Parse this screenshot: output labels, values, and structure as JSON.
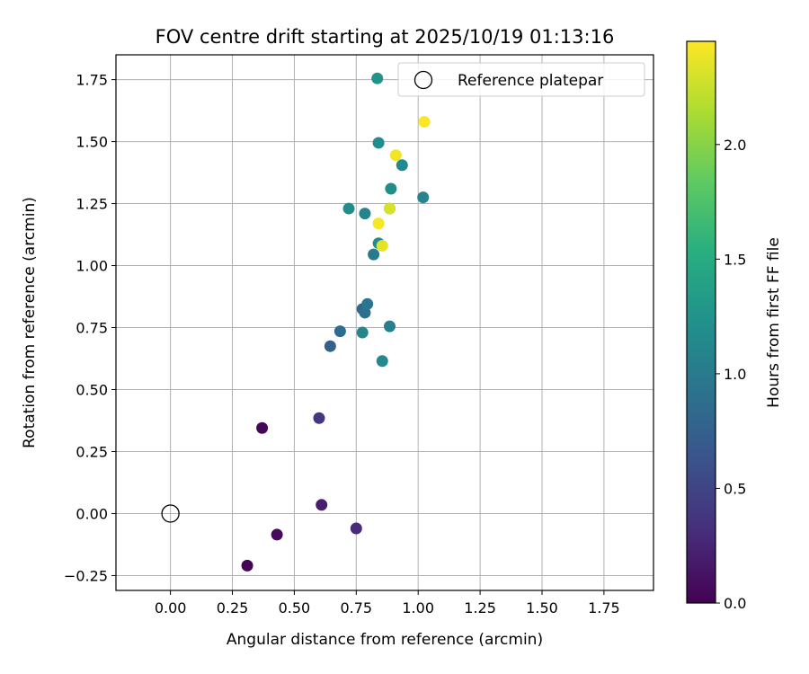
{
  "chart_data": {
    "type": "scatter",
    "title": "FOV centre drift starting at 2025/10/19 01:13:16",
    "xlabel": "Angular distance from reference (arcmin)",
    "ylabel": "Rotation from reference (arcmin)",
    "xlim": [
      -0.22,
      1.95
    ],
    "ylim": [
      -0.31,
      1.85
    ],
    "xticks": [
      0.0,
      0.25,
      0.5,
      0.75,
      1.0,
      1.25,
      1.5,
      1.75
    ],
    "xtick_labels": [
      "0.00",
      "0.25",
      "0.50",
      "0.75",
      "1.00",
      "1.25",
      "1.50",
      "1.75"
    ],
    "yticks": [
      -0.25,
      0.0,
      0.25,
      0.5,
      0.75,
      1.0,
      1.25,
      1.5,
      1.75
    ],
    "ytick_labels": [
      "−0.25",
      "0.00",
      "0.25",
      "0.50",
      "0.75",
      "1.00",
      "1.25",
      "1.50",
      "1.75"
    ],
    "grid": true,
    "legend": {
      "position": "top-right",
      "label": "Reference platepar"
    },
    "reference_point": {
      "x": 0.0,
      "y": 0.0
    },
    "colorbar": {
      "label": "Hours from first FF file",
      "colormap": "viridis",
      "range": [
        0.0,
        2.45
      ],
      "ticks": [
        0.0,
        0.5,
        1.0,
        1.5,
        2.0
      ],
      "tick_labels": [
        "0.0",
        "0.5",
        "1.0",
        "1.5",
        "2.0"
      ]
    },
    "points": [
      {
        "x": 0.31,
        "y": -0.21,
        "hours": 0.02
      },
      {
        "x": 0.43,
        "y": -0.085,
        "hours": 0.06
      },
      {
        "x": 0.37,
        "y": 0.345,
        "hours": 0.04
      },
      {
        "x": 0.61,
        "y": 0.035,
        "hours": 0.2
      },
      {
        "x": 0.75,
        "y": -0.06,
        "hours": 0.3
      },
      {
        "x": 0.6,
        "y": 0.385,
        "hours": 0.4
      },
      {
        "x": 0.645,
        "y": 0.675,
        "hours": 0.75
      },
      {
        "x": 0.685,
        "y": 0.735,
        "hours": 0.85
      },
      {
        "x": 0.775,
        "y": 0.825,
        "hours": 0.8
      },
      {
        "x": 0.785,
        "y": 0.81,
        "hours": 0.9
      },
      {
        "x": 0.795,
        "y": 0.845,
        "hours": 0.95
      },
      {
        "x": 0.775,
        "y": 0.73,
        "hours": 1.1
      },
      {
        "x": 0.855,
        "y": 0.615,
        "hours": 1.15
      },
      {
        "x": 0.885,
        "y": 0.755,
        "hours": 1.05
      },
      {
        "x": 0.82,
        "y": 1.045,
        "hours": 1.0
      },
      {
        "x": 0.84,
        "y": 1.09,
        "hours": 1.2
      },
      {
        "x": 0.72,
        "y": 1.23,
        "hours": 1.2
      },
      {
        "x": 0.785,
        "y": 1.21,
        "hours": 1.1
      },
      {
        "x": 0.885,
        "y": 1.23,
        "hours": 1.15
      },
      {
        "x": 0.89,
        "y": 1.31,
        "hours": 1.2
      },
      {
        "x": 1.02,
        "y": 1.275,
        "hours": 1.1
      },
      {
        "x": 0.935,
        "y": 1.405,
        "hours": 1.15
      },
      {
        "x": 0.84,
        "y": 1.495,
        "hours": 1.2
      },
      {
        "x": 0.835,
        "y": 1.755,
        "hours": 1.25
      },
      {
        "x": 0.84,
        "y": 1.17,
        "hours": 2.42
      },
      {
        "x": 0.855,
        "y": 1.08,
        "hours": 2.35
      },
      {
        "x": 0.885,
        "y": 1.23,
        "hours": 2.3
      },
      {
        "x": 0.91,
        "y": 1.445,
        "hours": 2.4
      },
      {
        "x": 1.025,
        "y": 1.58,
        "hours": 2.44
      }
    ]
  }
}
